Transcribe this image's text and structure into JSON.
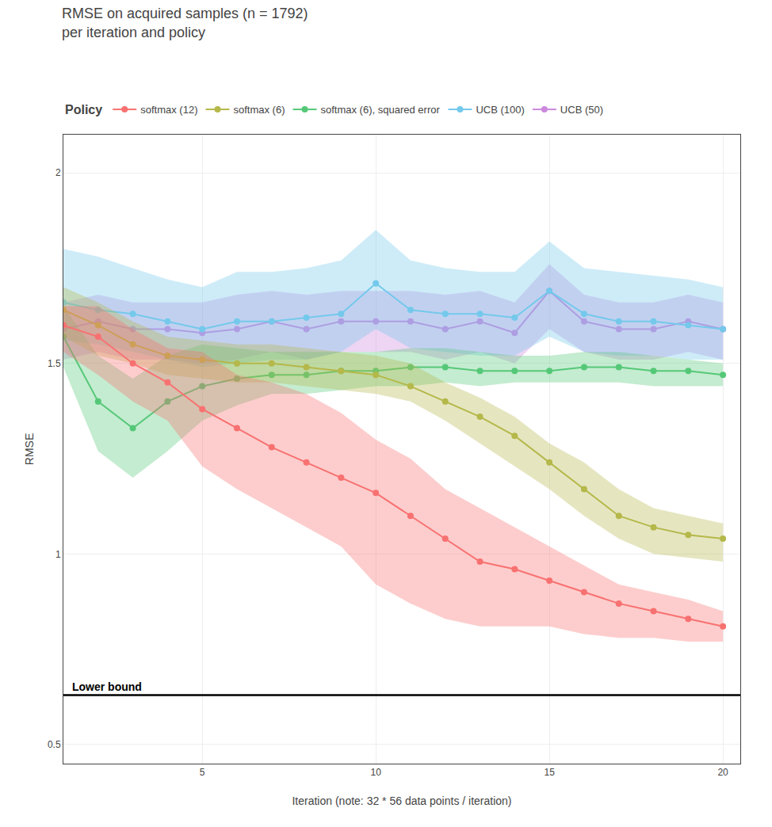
{
  "chart_data": {
    "type": "line",
    "title": "RMSE on acquired samples (n = 1792)\nper iteration and policy",
    "x_label": "Iteration (note: 32 * 56 data points / iteration)",
    "y_label": "RMSE",
    "legend_title": "Policy",
    "x": [
      1,
      2,
      3,
      4,
      5,
      6,
      7,
      8,
      9,
      10,
      11,
      12,
      13,
      14,
      15,
      16,
      17,
      18,
      19,
      20
    ],
    "xlim": [
      1,
      20.5
    ],
    "ylim": [
      0.45,
      2.1
    ],
    "xticks": [
      5,
      10,
      15,
      20
    ],
    "yticks": [
      0.5,
      1.0,
      1.5,
      2.0
    ],
    "grid": true,
    "legend": "top",
    "marker": "circle",
    "reference_lines": [
      {
        "y": 0.63,
        "label": "Lower bound",
        "color": "#000000"
      }
    ],
    "series": [
      {
        "name": "softmax (12)",
        "color": "#f87171",
        "values": [
          1.6,
          1.57,
          1.5,
          1.45,
          1.38,
          1.33,
          1.28,
          1.24,
          1.2,
          1.16,
          1.1,
          1.04,
          0.98,
          0.96,
          0.93,
          0.9,
          0.87,
          0.85,
          0.83,
          0.81
        ],
        "q1": [
          1.53,
          1.47,
          1.4,
          1.35,
          1.23,
          1.17,
          1.12,
          1.07,
          1.02,
          0.92,
          0.87,
          0.83,
          0.81,
          0.81,
          0.81,
          0.79,
          0.78,
          0.78,
          0.77,
          0.77
        ],
        "q3": [
          1.65,
          1.65,
          1.59,
          1.54,
          1.53,
          1.47,
          1.45,
          1.42,
          1.37,
          1.3,
          1.25,
          1.17,
          1.12,
          1.07,
          1.02,
          0.97,
          0.92,
          0.9,
          0.88,
          0.85
        ]
      },
      {
        "name": "softmax (6)",
        "color": "#b5b84a",
        "values": [
          1.64,
          1.6,
          1.55,
          1.52,
          1.51,
          1.5,
          1.5,
          1.49,
          1.48,
          1.47,
          1.44,
          1.4,
          1.36,
          1.31,
          1.24,
          1.17,
          1.1,
          1.07,
          1.05,
          1.04
        ],
        "q1": [
          1.57,
          1.52,
          1.5,
          1.47,
          1.46,
          1.45,
          1.45,
          1.44,
          1.43,
          1.42,
          1.4,
          1.35,
          1.29,
          1.23,
          1.17,
          1.1,
          1.04,
          1.0,
          0.99,
          0.98
        ],
        "q3": [
          1.7,
          1.66,
          1.61,
          1.57,
          1.56,
          1.55,
          1.55,
          1.54,
          1.53,
          1.52,
          1.5,
          1.45,
          1.41,
          1.36,
          1.29,
          1.24,
          1.17,
          1.12,
          1.1,
          1.08
        ]
      },
      {
        "name": "softmax (6), squared error",
        "color": "#55c878",
        "values": [
          1.57,
          1.4,
          1.33,
          1.4,
          1.44,
          1.46,
          1.47,
          1.47,
          1.48,
          1.48,
          1.49,
          1.49,
          1.48,
          1.48,
          1.48,
          1.49,
          1.49,
          1.48,
          1.48,
          1.47
        ],
        "q1": [
          1.49,
          1.27,
          1.2,
          1.27,
          1.35,
          1.39,
          1.42,
          1.42,
          1.43,
          1.44,
          1.44,
          1.45,
          1.44,
          1.45,
          1.45,
          1.45,
          1.45,
          1.44,
          1.44,
          1.44
        ],
        "q3": [
          1.65,
          1.52,
          1.46,
          1.52,
          1.55,
          1.54,
          1.53,
          1.53,
          1.53,
          1.53,
          1.54,
          1.54,
          1.53,
          1.52,
          1.52,
          1.53,
          1.53,
          1.52,
          1.51,
          1.5
        ]
      },
      {
        "name": "UCB (100)",
        "color": "#74c9eb",
        "values": [
          1.66,
          1.64,
          1.63,
          1.61,
          1.59,
          1.61,
          1.61,
          1.62,
          1.63,
          1.71,
          1.64,
          1.63,
          1.63,
          1.62,
          1.69,
          1.63,
          1.61,
          1.61,
          1.6,
          1.59
        ],
        "q1": [
          1.56,
          1.55,
          1.53,
          1.51,
          1.49,
          1.5,
          1.51,
          1.51,
          1.53,
          1.59,
          1.54,
          1.53,
          1.52,
          1.52,
          1.57,
          1.53,
          1.52,
          1.52,
          1.51,
          1.51
        ],
        "q3": [
          1.8,
          1.78,
          1.75,
          1.72,
          1.7,
          1.74,
          1.74,
          1.75,
          1.77,
          1.85,
          1.77,
          1.75,
          1.74,
          1.74,
          1.82,
          1.75,
          1.74,
          1.73,
          1.72,
          1.7
        ]
      },
      {
        "name": "UCB (50)",
        "color": "#cc88dd",
        "values": [
          1.59,
          1.61,
          1.59,
          1.59,
          1.58,
          1.59,
          1.61,
          1.59,
          1.61,
          1.61,
          1.61,
          1.59,
          1.61,
          1.58,
          1.69,
          1.61,
          1.59,
          1.59,
          1.61,
          1.59
        ],
        "q1": [
          1.51,
          1.53,
          1.51,
          1.51,
          1.5,
          1.51,
          1.53,
          1.51,
          1.53,
          1.53,
          1.53,
          1.51,
          1.53,
          1.5,
          1.59,
          1.53,
          1.51,
          1.51,
          1.53,
          1.51
        ],
        "q3": [
          1.66,
          1.68,
          1.66,
          1.66,
          1.66,
          1.68,
          1.69,
          1.68,
          1.69,
          1.69,
          1.69,
          1.68,
          1.69,
          1.66,
          1.76,
          1.68,
          1.66,
          1.66,
          1.68,
          1.66
        ]
      }
    ]
  }
}
